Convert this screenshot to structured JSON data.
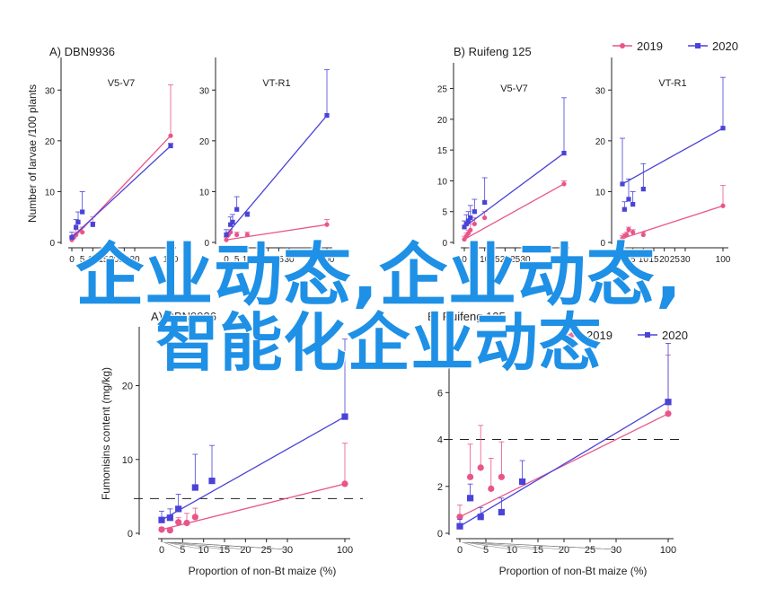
{
  "colors": {
    "2019": "#e8558a",
    "2020": "#4a43d8",
    "axis": "#222222",
    "threshold": "#222222"
  },
  "legend_top": {
    "entries": [
      "2019",
      "2020"
    ]
  },
  "legend_bottom": {
    "entries": [
      "2019",
      "2020"
    ]
  },
  "overlay": {
    "line1": "企业动态,企业动态,",
    "line2": "智能化企业动态"
  },
  "chart_data": [
    {
      "type": "line",
      "panel": "A",
      "title": "A)  DBN9936",
      "subtitle": "V5-V7",
      "ylabel": "Number of larvae /100 plants",
      "ylim": [
        0,
        35
      ],
      "yticks": [
        0,
        10,
        20,
        30
      ],
      "xticks": [
        "0",
        "5",
        "10",
        "15",
        "20",
        "25",
        "30",
        "100"
      ],
      "series": [
        {
          "name": "2019",
          "x": [
            0,
            1,
            2,
            5,
            10,
            100
          ],
          "y": [
            0.5,
            1.0,
            1.5,
            2.0,
            3.5,
            21.0
          ],
          "err": [
            0.5,
            0.5,
            1.0,
            1.0,
            1.5,
            10.0
          ]
        },
        {
          "name": "2020",
          "x": [
            0,
            2,
            3,
            5,
            10,
            100
          ],
          "y": [
            1.0,
            3.0,
            4.0,
            6.0,
            3.5,
            19.0
          ],
          "err": [
            1.0,
            1.5,
            2.0,
            4.0,
            0.5,
            0.5
          ]
        }
      ]
    },
    {
      "type": "line",
      "panel": "A",
      "title": "",
      "subtitle": "VT-R1",
      "ylim": [
        0,
        35
      ],
      "yticks": [
        0,
        10,
        20,
        30
      ],
      "xticks": [
        "0",
        "5",
        "10",
        "15",
        "20",
        "25",
        "30",
        "100"
      ],
      "series": [
        {
          "name": "2019",
          "x": [
            0,
            1,
            2,
            5,
            10,
            100
          ],
          "y": [
            0.5,
            1.5,
            2.0,
            1.5,
            1.5,
            3.5
          ],
          "err": [
            0.5,
            0.5,
            0.5,
            0.5,
            0.5,
            1.0
          ]
        },
        {
          "name": "2020",
          "x": [
            0,
            2,
            3,
            5,
            10,
            100
          ],
          "y": [
            1.5,
            3.5,
            4.0,
            6.5,
            5.5,
            25.0
          ],
          "err": [
            1.0,
            1.5,
            1.5,
            2.5,
            0.5,
            9.0
          ]
        }
      ]
    },
    {
      "type": "line",
      "panel": "B",
      "title": "B)  Ruifeng 125",
      "subtitle": "V5-V7",
      "ylim": [
        0,
        28
      ],
      "yticks": [
        0,
        5,
        10,
        15,
        20,
        25
      ],
      "xticks": [
        "0",
        "5",
        "10",
        "15",
        "20",
        "25",
        "30",
        "100"
      ],
      "series": [
        {
          "name": "2019",
          "x": [
            0,
            1,
            2,
            3,
            5,
            10,
            100
          ],
          "y": [
            0.5,
            1.0,
            1.5,
            2.0,
            3.0,
            4.0,
            9.5
          ],
          "err": [
            0.5,
            0.5,
            0.5,
            1.0,
            1.0,
            1.0,
            0.5
          ]
        },
        {
          "name": "2020",
          "x": [
            0,
            1,
            2,
            3,
            5,
            10,
            100
          ],
          "y": [
            2.5,
            3.0,
            3.5,
            4.0,
            5.0,
            6.5,
            14.5
          ],
          "err": [
            1.0,
            1.5,
            1.5,
            2.0,
            2.0,
            4.0,
            9.0
          ]
        }
      ]
    },
    {
      "type": "line",
      "panel": "B",
      "title": "",
      "subtitle": "VT-R1",
      "ylim": [
        0,
        35
      ],
      "yticks": [
        0,
        10,
        20,
        30
      ],
      "xticks": [
        "0",
        "5",
        "10",
        "15",
        "20",
        "25",
        "30",
        "100"
      ],
      "series": [
        {
          "name": "2019",
          "x": [
            0,
            1,
            2,
            3,
            5,
            10,
            100
          ],
          "y": [
            0.8,
            1.2,
            1.5,
            2.5,
            2.0,
            1.5,
            7.2
          ],
          "err": [
            0.5,
            0.5,
            0.5,
            0.5,
            0.5,
            0.5,
            4.0
          ]
        },
        {
          "name": "2020",
          "x": [
            0,
            1,
            3,
            5,
            10,
            100
          ],
          "y": [
            11.5,
            6.5,
            8.5,
            7.5,
            10.5,
            22.5
          ],
          "err": [
            9.0,
            1.5,
            4.0,
            2.5,
            5.0,
            10.0
          ]
        }
      ]
    },
    {
      "type": "line",
      "panel": "A",
      "title": "A) DBN9936",
      "subtitle": "",
      "ylabel": "Fumonisins content (mg/kg)",
      "xlabel": "Proportion of non-Bt maize (%)",
      "ylim": [
        0,
        27
      ],
      "yticks": [
        0,
        10,
        20
      ],
      "threshold": 4.7,
      "xticks": [
        "0",
        "5",
        "10",
        "15",
        "20",
        "25",
        "30",
        "100"
      ],
      "series": [
        {
          "name": "2019",
          "x": [
            0,
            2,
            4,
            6,
            8,
            100
          ],
          "y": [
            0.5,
            0.4,
            1.5,
            1.4,
            2.2,
            6.7
          ],
          "err": [
            0.3,
            0.3,
            0.6,
            1.3,
            1.2,
            5.5
          ]
        },
        {
          "name": "2020",
          "x": [
            0,
            2,
            4,
            8,
            12,
            100
          ],
          "y": [
            1.8,
            2.1,
            3.3,
            6.2,
            7.1,
            15.8
          ],
          "err": [
            1.2,
            1.2,
            2.0,
            4.5,
            4.8,
            10.5
          ]
        }
      ]
    },
    {
      "type": "line",
      "panel": "B",
      "title": "B) Ruifeng 125",
      "subtitle": "",
      "xlabel": "Proportion of non-Bt maize (%)",
      "ylim": [
        0,
        8.5
      ],
      "yticks": [
        0,
        2,
        4,
        6
      ],
      "threshold": 4.0,
      "xticks": [
        "0",
        "5",
        "10",
        "15",
        "20",
        "25",
        "30",
        "100"
      ],
      "series": [
        {
          "name": "2019",
          "x": [
            0,
            2,
            4,
            6,
            8,
            100
          ],
          "y": [
            0.7,
            2.4,
            2.8,
            1.9,
            2.4,
            5.1
          ],
          "err": [
            0.5,
            1.4,
            1.8,
            1.3,
            1.5,
            2.5
          ]
        },
        {
          "name": "2020",
          "x": [
            0,
            2,
            4,
            8,
            12,
            100
          ],
          "y": [
            0.3,
            1.5,
            0.7,
            0.9,
            2.2,
            5.6
          ],
          "err": [
            0.3,
            0.6,
            0.4,
            0.6,
            0.9,
            2.5
          ]
        }
      ]
    }
  ]
}
